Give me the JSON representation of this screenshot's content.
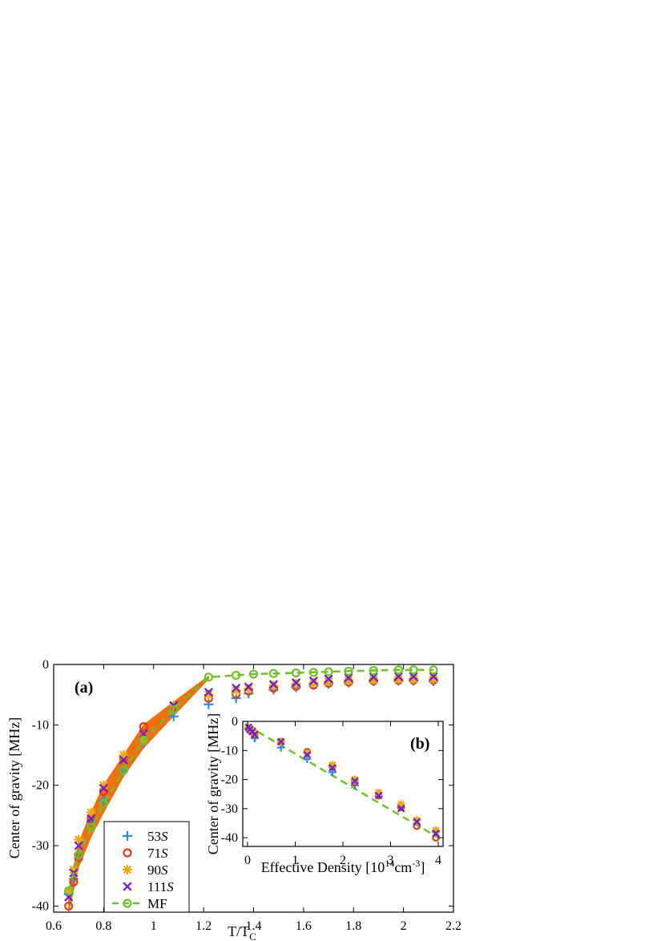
{
  "chart_data": [
    {
      "type": "scatter",
      "panel_label": "(a)",
      "xlabel": "T/T",
      "xlabel_sub": "C",
      "ylabel": "Center of gravity [MHz]",
      "xlim": [
        0.6,
        2.2
      ],
      "ylim": [
        -41,
        0
      ],
      "xticks": [
        0.6,
        0.8,
        1,
        1.2,
        1.4,
        1.6,
        1.8,
        2,
        2.2
      ],
      "xtick_labels": [
        "0.6",
        "0.8",
        "1",
        "1.2",
        "1.4",
        "1.6",
        "1.8",
        "2",
        "2.2"
      ],
      "yticks": [
        0,
        -10,
        -20,
        -30,
        -40
      ],
      "ytick_labels": [
        "0",
        "-10",
        "-20",
        "-30",
        "-40"
      ],
      "legend_position": "bottom-left",
      "band": {
        "color": "#f07010",
        "x": [
          0.66,
          0.7,
          0.75,
          0.8,
          0.88,
          0.96,
          1.08,
          1.22
        ],
        "upper": [
          -37.5,
          -29.5,
          -24.5,
          -20.0,
          -15.0,
          -10.0,
          -6.2,
          -1.9
        ],
        "lower": [
          -41.0,
          -33.5,
          -28.5,
          -24.5,
          -18.5,
          -13.8,
          -8.5,
          -2.4
        ]
      },
      "series": [
        {
          "name": "53S",
          "marker": "plus",
          "color": "#2b8ce8",
          "x": [
            0.66,
            0.68,
            0.7,
            0.75,
            0.8,
            0.88,
            0.96,
            1.08,
            1.22,
            1.33,
            1.38,
            1.48,
            1.57,
            1.64,
            1.7,
            1.78,
            1.88,
            1.98,
            2.04,
            2.12
          ],
          "y": [
            -38.0,
            -35.5,
            -31.5,
            -26.0,
            -22.5,
            -17.5,
            -13.0,
            -8.6,
            -6.6,
            -5.6,
            -4.8,
            -4.2,
            -3.8,
            -3.4,
            -3.2,
            -3.0,
            -2.8,
            -2.7,
            -2.7,
            -2.8
          ]
        },
        {
          "name": "71S",
          "marker": "circle",
          "color": "#d94016",
          "x": [
            0.66,
            0.68,
            0.7,
            0.75,
            0.8,
            0.88,
            0.96,
            1.08,
            1.22,
            1.33,
            1.38,
            1.48,
            1.57,
            1.64,
            1.7,
            1.78,
            1.88,
            1.98,
            2.04,
            2.12
          ],
          "y": [
            -40.0,
            -36.0,
            -32.0,
            -25.5,
            -21.0,
            -15.5,
            -10.3,
            -7.0,
            -5.6,
            -4.9,
            -4.4,
            -3.9,
            -3.6,
            -3.4,
            -3.1,
            -2.9,
            -2.7,
            -2.6,
            -2.6,
            -2.6
          ]
        },
        {
          "name": "90S",
          "marker": "star",
          "color": "#f5a70e",
          "x": [
            0.66,
            0.68,
            0.7,
            0.75,
            0.8,
            0.88,
            0.96,
            1.08,
            1.22,
            1.33,
            1.38,
            1.48,
            1.57,
            1.64,
            1.7,
            1.78,
            1.88,
            1.98,
            2.04,
            2.12
          ],
          "y": [
            -37.5,
            -34.0,
            -29.0,
            -24.5,
            -20.0,
            -15.0,
            -12.5,
            -6.8,
            -5.0,
            -4.3,
            -4.0,
            -3.5,
            -3.2,
            -3.0,
            -2.8,
            -2.6,
            -2.5,
            -2.4,
            -2.4,
            -2.4
          ]
        },
        {
          "name": "111S",
          "marker": "x",
          "color": "#6a1fd6",
          "x": [
            0.66,
            0.68,
            0.7,
            0.75,
            0.8,
            0.88,
            0.96,
            1.08,
            1.22,
            1.33,
            1.38,
            1.48,
            1.57,
            1.64,
            1.7,
            1.78,
            1.88,
            1.98,
            2.04,
            2.12
          ],
          "y": [
            -38.5,
            -34.5,
            -30.0,
            -25.5,
            -20.5,
            -15.8,
            -11.5,
            -6.8,
            -4.6,
            -3.9,
            -3.7,
            -3.3,
            -3.0,
            -2.7,
            -2.4,
            -2.2,
            -2.1,
            -2.0,
            -2.0,
            -2.0
          ]
        },
        {
          "name": "MF",
          "marker": "circle-line",
          "color": "#6ec12a",
          "x": [
            0.66,
            0.7,
            0.75,
            0.8,
            0.88,
            0.96,
            1.08,
            1.22,
            1.33,
            1.4,
            1.48,
            1.57,
            1.64,
            1.7,
            1.78,
            1.88,
            1.98,
            2.04,
            2.12
          ],
          "y": [
            -37.5,
            -31.5,
            -27.0,
            -23.0,
            -17.5,
            -12.5,
            -7.5,
            -2.1,
            -1.8,
            -1.6,
            -1.5,
            -1.4,
            -1.3,
            -1.2,
            -1.1,
            -1.0,
            -0.9,
            -0.9,
            -0.9
          ]
        }
      ]
    },
    {
      "type": "scatter",
      "panel_label": "(b)",
      "xlabel": "Effective Density [10",
      "xlabel_sup": "14",
      "xlabel_unit": "cm",
      "xlabel_unit_sup": "-3",
      "xlabel_close": "]",
      "ylabel": "Center of gravity [MHz]",
      "xlim": [
        -0.1,
        4.1
      ],
      "ylim": [
        -43,
        0
      ],
      "xticks": [
        0,
        1,
        2,
        3,
        4
      ],
      "xtick_labels": [
        "0",
        "1",
        "2",
        "3",
        "4"
      ],
      "yticks": [
        0,
        -10,
        -20,
        -30,
        -40
      ],
      "ytick_labels": [
        "0",
        "-10",
        "-20",
        "-30",
        "-40"
      ],
      "fit_line": {
        "color": "#6ec12a",
        "x": [
          0,
          4
        ],
        "y": [
          -1.5,
          -40.0
        ]
      },
      "series": [
        {
          "name": "53S",
          "marker": "plus",
          "color": "#2b8ce8",
          "x": [
            0.02,
            0.05,
            0.1,
            0.15,
            0.7,
            1.25,
            1.78,
            2.25,
            2.75,
            3.22,
            3.55,
            3.95
          ],
          "y": [
            -2.5,
            -3.0,
            -4.0,
            -5.8,
            -9.0,
            -13.0,
            -17.5,
            -22.0,
            -25.5,
            -29.5,
            -34.0,
            -38.0
          ]
        },
        {
          "name": "71S",
          "marker": "circle",
          "color": "#d94016",
          "x": [
            0.02,
            0.05,
            0.1,
            0.15,
            0.7,
            1.25,
            1.78,
            2.25,
            2.75,
            3.22,
            3.55,
            3.95
          ],
          "y": [
            -2.5,
            -3.0,
            -3.5,
            -4.5,
            -7.0,
            -10.5,
            -15.5,
            -21.0,
            -25.5,
            -29.5,
            -36.0,
            -40.0
          ]
        },
        {
          "name": "90S",
          "marker": "star",
          "color": "#f5a70e",
          "x": [
            0.02,
            0.05,
            0.1,
            0.15,
            0.7,
            1.25,
            1.78,
            2.25,
            2.75,
            3.22,
            3.55,
            3.95
          ],
          "y": [
            -2.0,
            -2.5,
            -3.0,
            -4.0,
            -7.0,
            -11.0,
            -15.0,
            -20.0,
            -24.5,
            -28.5,
            -34.0,
            -37.5
          ]
        },
        {
          "name": "111S",
          "marker": "x",
          "color": "#6a1fd6",
          "x": [
            0.02,
            0.05,
            0.1,
            0.15,
            0.7,
            1.25,
            1.78,
            2.25,
            2.75,
            3.22,
            3.55,
            3.95
          ],
          "y": [
            -2.0,
            -2.8,
            -3.5,
            -4.5,
            -7.0,
            -11.5,
            -16.0,
            -20.5,
            -25.5,
            -30.0,
            -34.5,
            -38.5
          ]
        }
      ]
    }
  ]
}
